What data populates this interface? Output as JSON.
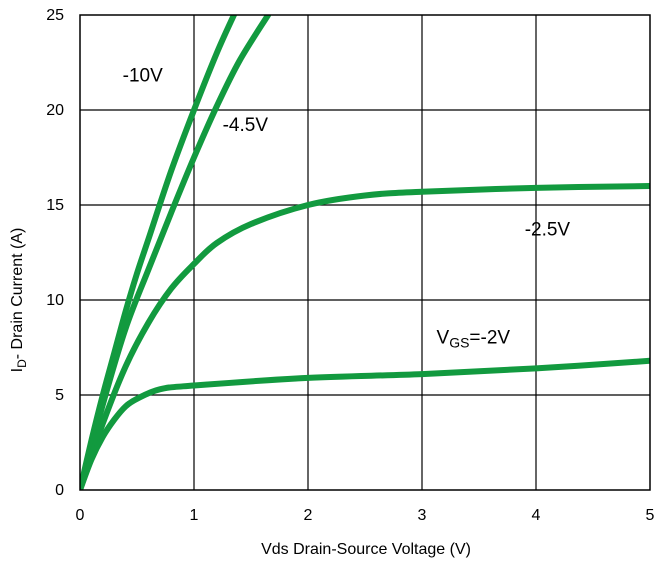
{
  "chart_data": {
    "type": "line",
    "title": "",
    "xlabel": "Vds Drain-Source Voltage (V)",
    "ylabel_main": "I",
    "ylabel_sub": "D",
    "ylabel_rest": "- Drain Current (A)",
    "xlim": [
      0,
      5
    ],
    "ylim": [
      0,
      25
    ],
    "xticks": [
      "0",
      "1",
      "2",
      "3",
      "4",
      "5"
    ],
    "yticks": [
      "0",
      "5",
      "10",
      "15",
      "20",
      "25"
    ],
    "grid": true,
    "line_color": "#129A3F",
    "series": [
      {
        "name": "-10V",
        "x": [
          0,
          0.1,
          0.2,
          0.3,
          0.4,
          0.5,
          0.6,
          0.8,
          1.0,
          1.2,
          1.35
        ],
        "y": [
          0,
          2.6,
          5.0,
          7.2,
          9.4,
          11.4,
          13.2,
          16.8,
          20.0,
          23.0,
          25.0
        ]
      },
      {
        "name": "-4.5V",
        "x": [
          0,
          0.2,
          0.4,
          0.6,
          0.8,
          1.0,
          1.2,
          1.4,
          1.65
        ],
        "y": [
          0,
          4.5,
          8.5,
          11.6,
          14.6,
          17.5,
          20.2,
          22.6,
          25.0
        ]
      },
      {
        "name": "-2.5V",
        "x": [
          0,
          0.2,
          0.4,
          0.6,
          0.8,
          1.0,
          1.2,
          1.5,
          2.0,
          2.5,
          3.0,
          4.0,
          5.0
        ],
        "y": [
          0,
          3.5,
          6.5,
          8.8,
          10.6,
          11.9,
          13.0,
          14.0,
          15.0,
          15.5,
          15.7,
          15.9,
          16.0
        ]
      },
      {
        "name": "VGS=-2V",
        "x": [
          0,
          0.1,
          0.2,
          0.3,
          0.4,
          0.5,
          0.7,
          1.0,
          2.0,
          3.0,
          4.0,
          5.0
        ],
        "y": [
          0,
          1.6,
          2.8,
          3.7,
          4.4,
          4.8,
          5.3,
          5.5,
          5.9,
          6.1,
          6.4,
          6.8
        ]
      }
    ],
    "annotations": [
      {
        "text": "-10V",
        "x": 0.55,
        "y": 21.5
      },
      {
        "text": "-4.5V",
        "x": 1.45,
        "y": 18.9
      },
      {
        "text": "-2.5V",
        "x": 4.1,
        "y": 13.4
      },
      {
        "main": "V",
        "sub": "GS",
        "rest": "=-2V",
        "x": 3.45,
        "y": 7.7
      }
    ]
  }
}
